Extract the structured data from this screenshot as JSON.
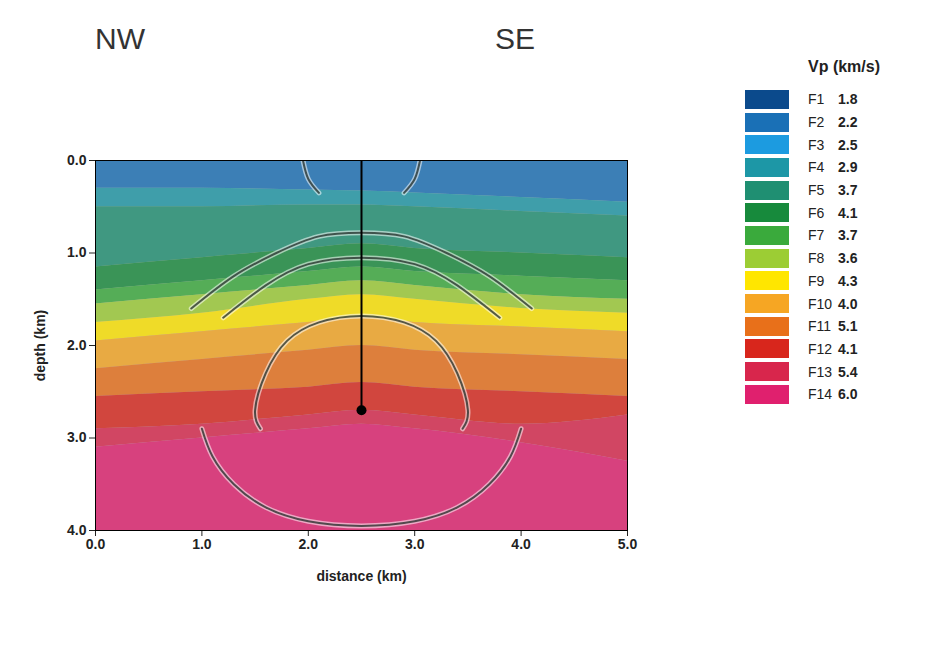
{
  "chart_data": {
    "type": "velocity_model",
    "annotations": [
      "NW",
      "SE"
    ],
    "x_label": "distance (km)",
    "y_label": "depth (km)",
    "xlim": [
      0,
      5
    ],
    "ylim": [
      0,
      4
    ],
    "xticks": [
      {
        "value": 0,
        "label": "0.0"
      },
      {
        "value": 1,
        "label": "1.0"
      },
      {
        "value": 2,
        "label": "2.0"
      },
      {
        "value": 3,
        "label": "3.0"
      },
      {
        "value": 4,
        "label": "4.0"
      },
      {
        "value": 5,
        "label": "5.0"
      }
    ],
    "yticks": [
      {
        "value": 0,
        "label": "0.0"
      },
      {
        "value": 1,
        "label": "1.0"
      },
      {
        "value": 2,
        "label": "2.0"
      },
      {
        "value": 3,
        "label": "3.0"
      },
      {
        "value": 4,
        "label": "4.0"
      }
    ],
    "legend": "right",
    "legend_title": "Vp (km/s)",
    "facies": {
      "names": [
        "F1",
        "F2",
        "F3",
        "F4",
        "F5",
        "F6",
        "F7",
        "F8",
        "F9",
        "F10",
        "F11",
        "F12",
        "F13",
        "F14"
      ],
      "colors": [
        "#0b4a8c",
        "#1a70b6",
        "#1c9be0",
        "#1d97a6",
        "#1f8f72",
        "#178a3c",
        "#3aaa3c",
        "#9ccd34",
        "#ffe600",
        "#f6a623",
        "#e8701a",
        "#d8261c",
        "#d8264c",
        "#e0206e"
      ],
      "values": [
        1.8,
        2.2,
        2.5,
        2.9,
        3.7,
        4.1,
        3.7,
        3.6,
        4.3,
        4.0,
        5.1,
        4.1,
        5.4,
        6.0
      ],
      "value_labels": [
        "1.8",
        "2.2",
        "2.5",
        "2.9",
        "3.7",
        "4.1",
        "3.7",
        "3.6",
        "4.3",
        "4.0",
        "5.1",
        "4.1",
        "5.4",
        "6.0"
      ]
    },
    "x": [
      0,
      1,
      2,
      2.5,
      3,
      4,
      5
    ],
    "layers": [
      {
        "facies": "F2",
        "base": [
          0.3,
          0.3,
          0.32,
          0.33,
          0.35,
          0.4,
          0.45
        ]
      },
      {
        "facies": "F4",
        "base": [
          0.5,
          0.5,
          0.48,
          0.48,
          0.5,
          0.55,
          0.6
        ]
      },
      {
        "facies": "F5",
        "base": [
          1.15,
          1.05,
          0.95,
          0.9,
          0.95,
          1.0,
          1.05
        ]
      },
      {
        "facies": "F6",
        "base": [
          1.4,
          1.3,
          1.2,
          1.15,
          1.2,
          1.25,
          1.3
        ]
      },
      {
        "facies": "F7",
        "base": [
          1.55,
          1.45,
          1.35,
          1.3,
          1.35,
          1.45,
          1.5
        ]
      },
      {
        "facies": "F8",
        "base": [
          1.75,
          1.65,
          1.5,
          1.45,
          1.5,
          1.6,
          1.65
        ]
      },
      {
        "facies": "F9",
        "base": [
          1.95,
          1.85,
          1.75,
          1.7,
          1.75,
          1.8,
          1.85
        ]
      },
      {
        "facies": "F10",
        "base": [
          2.25,
          2.15,
          2.05,
          2.0,
          2.05,
          2.1,
          2.15
        ]
      },
      {
        "facies": "F11",
        "base": [
          2.55,
          2.5,
          2.45,
          2.4,
          2.45,
          2.5,
          2.55
        ]
      },
      {
        "facies": "F12",
        "base": [
          2.9,
          2.85,
          2.75,
          2.7,
          2.75,
          2.85,
          2.75
        ]
      },
      {
        "facies": "F13",
        "base": [
          3.1,
          3.0,
          2.9,
          2.85,
          2.9,
          3.05,
          3.25
        ]
      },
      {
        "facies": "F14",
        "base": [
          4,
          4,
          4,
          4,
          4,
          4,
          4
        ]
      }
    ],
    "wavefronts": [
      {
        "x": [
          0.9,
          1.3,
          1.7,
          2.1,
          2.5,
          2.9,
          3.3,
          3.7,
          4.1
        ],
        "depth": [
          1.6,
          1.25,
          1.0,
          0.82,
          0.78,
          0.82,
          1.0,
          1.25,
          1.6
        ]
      },
      {
        "x": [
          1.2,
          1.6,
          2.0,
          2.5,
          3.0,
          3.4,
          3.8
        ],
        "depth": [
          1.7,
          1.35,
          1.12,
          1.05,
          1.12,
          1.35,
          1.7
        ]
      },
      {
        "x": [
          1.55,
          1.5,
          1.6,
          1.8,
          2.1,
          2.5,
          2.9,
          3.2,
          3.4,
          3.5,
          3.45
        ],
        "depth": [
          2.9,
          2.7,
          2.3,
          1.95,
          1.75,
          1.68,
          1.75,
          1.95,
          2.3,
          2.7,
          2.9
        ]
      },
      {
        "x": [
          1.0,
          1.1,
          1.3,
          1.6,
          2.0,
          2.5,
          3.0,
          3.4,
          3.7,
          3.9,
          4.0
        ],
        "depth": [
          2.9,
          3.2,
          3.5,
          3.75,
          3.9,
          3.95,
          3.9,
          3.75,
          3.5,
          3.2,
          2.9
        ]
      },
      {
        "x": [
          1.95,
          2.0,
          2.1
        ],
        "depth": [
          0,
          0.2,
          0.35
        ]
      },
      {
        "x": [
          3.05,
          3.0,
          2.9
        ],
        "depth": [
          0,
          0.2,
          0.35
        ]
      }
    ],
    "well": {
      "x": 2.5,
      "top": 0,
      "bottom": 2.7
    }
  }
}
